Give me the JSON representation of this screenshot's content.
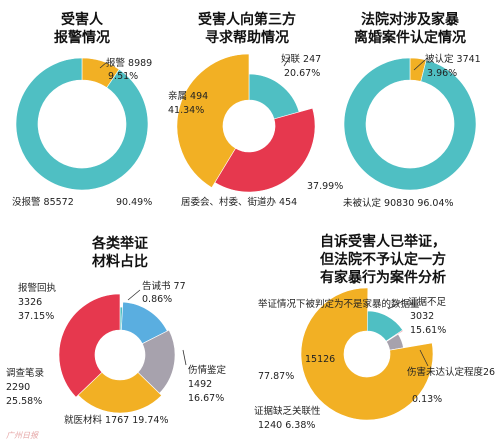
{
  "colors": {
    "teal": "#4fbfc3",
    "yellow": "#f2b024",
    "red": "#e6384e",
    "blue": "#5aaee0",
    "gray": "#a7a2ad",
    "white": "#ffffff"
  },
  "chart_data": [
    {
      "type": "pie",
      "title": [
        "受害人",
        "报警情况"
      ],
      "slices": [
        {
          "label": "报警",
          "count": 8989,
          "percent": "9.51%",
          "value": 9.51,
          "color": "#f2b024"
        },
        {
          "label": "没报警",
          "count": 85572,
          "percent": "90.49%",
          "value": 90.49,
          "color": "#4fbfc3"
        }
      ]
    },
    {
      "type": "pie",
      "title": [
        "受害人向第三方",
        "寻求帮助情况"
      ],
      "slices": [
        {
          "label": "妇联",
          "count": 247,
          "percent": "20.67%",
          "value": 20.67,
          "color": "#4fbfc3"
        },
        {
          "label": "居委会、村委、街道办",
          "count": 454,
          "percent": "37.99%",
          "value": 37.99,
          "color": "#e6384e"
        },
        {
          "label": "亲属",
          "count": 494,
          "percent": "41.34%",
          "value": 41.34,
          "color": "#f2b024"
        }
      ]
    },
    {
      "type": "pie",
      "title": [
        "法院对涉及家暴",
        "离婚案件认定情况"
      ],
      "slices": [
        {
          "label": "被认定",
          "count": 3741,
          "percent": "3.96%",
          "value": 3.96,
          "color": "#f2b024"
        },
        {
          "label": "未被认定",
          "count": 90830,
          "percent": "96.04%",
          "value": 96.04,
          "color": "#4fbfc3"
        }
      ]
    },
    {
      "type": "pie",
      "title": [
        "各类举证",
        "材料占比"
      ],
      "slices": [
        {
          "label": "告诫书",
          "count": 77,
          "percent": "0.86%",
          "value": 0.86,
          "color": "#4fbfc3"
        },
        {
          "label": "伤情鉴定",
          "count": 1492,
          "percent": "16.67%",
          "value": 16.67,
          "color": "#5aaee0"
        },
        {
          "label": "就医材料",
          "count": 1767,
          "percent": "19.74%",
          "value": 19.74,
          "color": "#a7a2ad"
        },
        {
          "label": "调查笔录",
          "count": 2290,
          "percent": "25.58%",
          "value": 25.58,
          "color": "#f2b024"
        },
        {
          "label": "报警回执",
          "count": 3326,
          "percent": "37.15%",
          "value": 37.15,
          "color": "#e6384e"
        }
      ]
    },
    {
      "type": "pie",
      "title": [
        "自诉受害人已举证，",
        "但法院不予认定一方",
        "有家暴行为案件分析"
      ],
      "slices": [
        {
          "label": "证据不足",
          "count": 3032,
          "percent": "15.61%",
          "value": 15.61,
          "color": "#4fbfc3"
        },
        {
          "label": "伤害未达认定程度",
          "count": 26,
          "percent": "0.13%",
          "value": 0.13,
          "color": "#e6384e"
        },
        {
          "label": "证据缺乏关联性",
          "count": 1240,
          "percent": "6.38%",
          "value": 6.38,
          "color": "#a7a2ad"
        },
        {
          "label": "举证情况下被判定为不是家暴的数据量",
          "count": 15126,
          "percent": "77.87%",
          "value": 77.87,
          "color": "#f2b024"
        }
      ]
    }
  ]
}
